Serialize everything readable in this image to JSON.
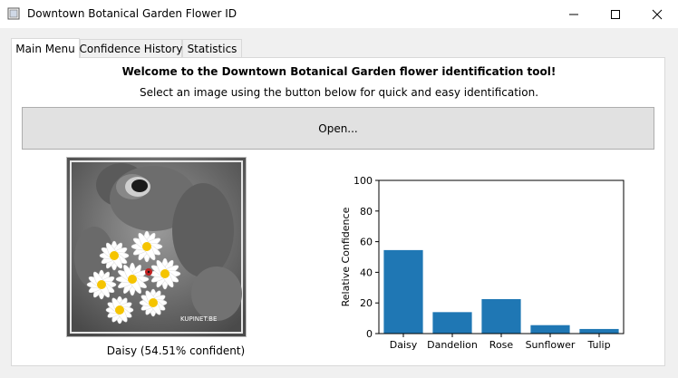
{
  "window": {
    "title": "Downtown Botanical Garden Flower ID",
    "controls": [
      "minimize",
      "maximize",
      "close"
    ]
  },
  "tabs": [
    {
      "label": "Main Menu",
      "active": true
    },
    {
      "label": "Confidence History",
      "active": false
    },
    {
      "label": "Statistics",
      "active": false
    }
  ],
  "main": {
    "welcome": "Welcome to the Downtown Botanical Garden flower identification tool!",
    "instructions": "Select an image using the button below for quick and easy identification.",
    "open_label": "Open...",
    "prediction": "Daisy (54.51% confident)",
    "image_subject": "teddy bear holding white daisies with a ladybug, grayscale background",
    "watermark": "KUPINET.BE"
  },
  "colors": {
    "bar": "#1f77b4",
    "panel": "#ffffff",
    "window_bg": "#f0f0f0"
  },
  "chart_data": {
    "type": "bar",
    "categories": [
      "Daisy",
      "Dandelion",
      "Rose",
      "Sunflower",
      "Tulip"
    ],
    "values": [
      54.5,
      14,
      22.5,
      5.5,
      3
    ],
    "ylabel": "Relative Confidence",
    "ylim": [
      0,
      100
    ],
    "yticks": [
      0,
      20,
      40,
      60,
      80,
      100
    ],
    "grid": false
  }
}
